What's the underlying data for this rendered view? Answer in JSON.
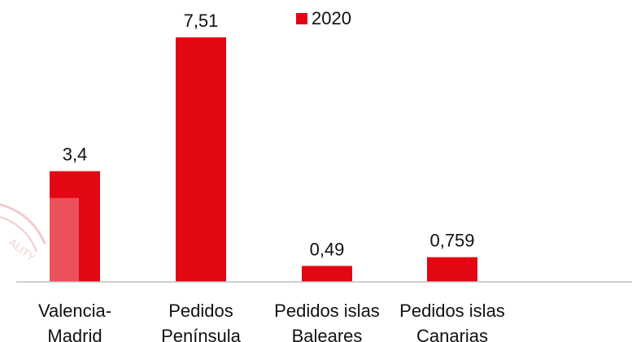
{
  "chart_data": {
    "type": "bar",
    "categories": [
      [
        "Valencia-",
        "Madrid"
      ],
      [
        "Pedidos",
        "Península"
      ],
      [
        "Pedidos islas",
        "Baleares"
      ],
      [
        "Pedidos islas",
        "Canarias"
      ]
    ],
    "series": [
      {
        "name": "2020",
        "values": [
          3.4,
          7.51,
          0.49,
          0.759
        ],
        "labels": [
          "3,4",
          "7,51",
          "0,49",
          "0,759"
        ],
        "color": "#e30613"
      }
    ],
    "ylim": [
      0,
      8
    ],
    "grid": false,
    "legend": "top"
  },
  "colors": {
    "bar": "#e30613",
    "axis": "#bfbfbf",
    "text": "#111111",
    "stamp": "#e8a0a4"
  }
}
